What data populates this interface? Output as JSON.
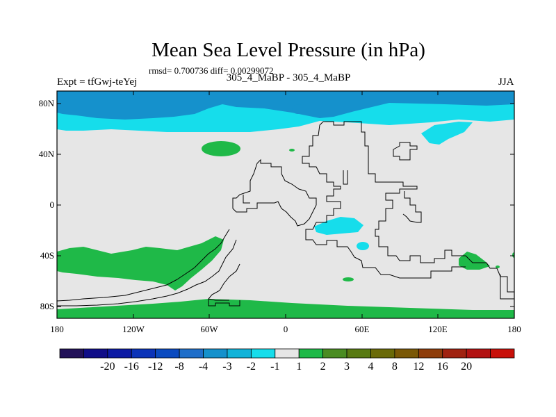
{
  "title": "Mean Sea Level Pressure (in hPa)",
  "stats": "rmsd= 0.700736 diff= 0.00299072",
  "subtitle_left": "Expt = tfGwj-teYej",
  "subtitle_center": "305_4_MaBP - 305_4_MaBP",
  "subtitle_right": "JJA",
  "y_axis": {
    "labels": [
      "80N",
      "40N",
      "0",
      "40S",
      "80S"
    ]
  },
  "x_axis": {
    "labels": [
      "180",
      "120W",
      "60W",
      "0",
      "60E",
      "120E",
      "180"
    ]
  },
  "colorbar": {
    "colors": [
      "#221158",
      "#100d88",
      "#0c1aa4",
      "#0b33b8",
      "#0a4ac0",
      "#1f6ec9",
      "#1591cc",
      "#11b3d9",
      "#16ddeb",
      "#e6e6e6",
      "#1fb948",
      "#4a8c22",
      "#587a12",
      "#6a6a08",
      "#7a5806",
      "#8e3d0a",
      "#a02210",
      "#b21212",
      "#c8100a"
    ],
    "labels": [
      "-20",
      "-16",
      "-12",
      "-8",
      "-4",
      "-3",
      "-2",
      "-1",
      "1",
      "2",
      "3",
      "4",
      "8",
      "12",
      "16",
      "20"
    ]
  },
  "chart_data": {
    "type": "heatmap",
    "title": "Mean Sea Level Pressure (in hPa)",
    "variable": "Mean Sea Level Pressure difference",
    "units": "hPa",
    "season": "JJA",
    "rmsd": 0.700736,
    "diff": 0.00299072,
    "lon_range": [
      -180,
      180
    ],
    "lat_range": [
      -90,
      90
    ],
    "contour_levels": [
      -20,
      -16,
      -12,
      -8,
      -4,
      -3,
      -2,
      -1,
      1,
      2,
      3,
      4,
      8,
      12,
      16,
      20
    ]
  }
}
